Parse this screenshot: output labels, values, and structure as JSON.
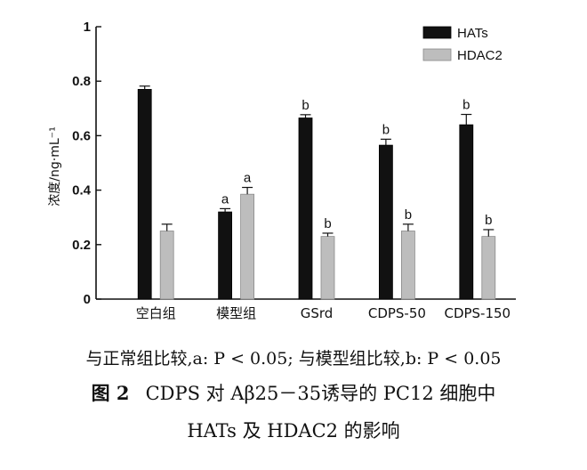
{
  "chart_data": {
    "type": "bar",
    "ylabel": "浓度/ng·mL⁻¹",
    "ylim": [
      0,
      1
    ],
    "yticks": [
      {
        "value": 0,
        "label": "0"
      },
      {
        "value": 0.2,
        "label": "0.2"
      },
      {
        "value": 0.4,
        "label": "0.4"
      },
      {
        "value": 0.6,
        "label": "0.6"
      },
      {
        "value": 0.8,
        "label": "0.8"
      },
      {
        "value": 1,
        "label": "1"
      }
    ],
    "categories": [
      "空白组",
      "模型组",
      "GSrd",
      "CDPS-50",
      "CDPS-150"
    ],
    "series": [
      {
        "name": "HATs",
        "color": "#111111",
        "values": [
          0.77,
          0.32,
          0.665,
          0.565,
          0.64
        ],
        "errors": [
          0.012,
          0.012,
          0.012,
          0.022,
          0.038
        ],
        "labels": [
          "",
          "a",
          "b",
          "b",
          "b"
        ]
      },
      {
        "name": "HDAC2",
        "color": "#bdbdbd",
        "values": [
          0.25,
          0.385,
          0.23,
          0.25,
          0.23
        ],
        "errors": [
          0.025,
          0.025,
          0.012,
          0.025,
          0.025
        ],
        "labels": [
          "",
          "a",
          "b",
          "b",
          "b"
        ]
      }
    ],
    "legend": "top-right",
    "grid": false
  },
  "note": "与正常组比较,a: P < 0.05; 与模型组比较,b: P < 0.05",
  "caption": {
    "number": "图 2",
    "line1": "CDPS 对 Aβ25－35诱导的 PC12 细胞中",
    "line2": "HATs 及 HDAC2 的影响"
  }
}
